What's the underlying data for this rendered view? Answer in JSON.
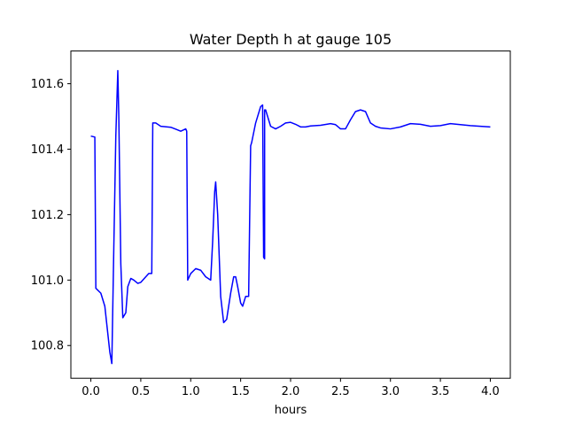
{
  "chart_data": {
    "type": "line",
    "title": "Water Depth h at gauge 105",
    "xlabel": "hours",
    "ylabel": "",
    "xlim": [
      -0.2,
      4.2
    ],
    "ylim": [
      100.7,
      101.7
    ],
    "xticks": [
      0.0,
      0.5,
      1.0,
      1.5,
      2.0,
      2.5,
      3.0,
      3.5,
      4.0
    ],
    "xtick_labels": [
      "0.0",
      "0.5",
      "1.0",
      "1.5",
      "2.0",
      "2.5",
      "3.0",
      "3.5",
      "4.0"
    ],
    "yticks": [
      100.8,
      101.0,
      101.2,
      101.4,
      101.6
    ],
    "ytick_labels": [
      "100.8",
      "101.0",
      "101.2",
      "101.4",
      "101.6"
    ],
    "grid": false,
    "legend": "none",
    "colors": {
      "line": "#0000ff",
      "axes": "#000000",
      "background": "#ffffff"
    },
    "series": [
      {
        "x": [
          0.0,
          0.04,
          0.05,
          0.1,
          0.14,
          0.19,
          0.21,
          0.23,
          0.25,
          0.27,
          0.28,
          0.3,
          0.32,
          0.35,
          0.37,
          0.4,
          0.43,
          0.47,
          0.5,
          0.55,
          0.58,
          0.61,
          0.62,
          0.65,
          0.7,
          0.8,
          0.86,
          0.9,
          0.95,
          0.96,
          0.97,
          1.0,
          1.05,
          1.1,
          1.15,
          1.2,
          1.22,
          1.24,
          1.25,
          1.27,
          1.3,
          1.33,
          1.36,
          1.4,
          1.43,
          1.45,
          1.47,
          1.5,
          1.52,
          1.55,
          1.58,
          1.6,
          1.61,
          1.65,
          1.7,
          1.72,
          1.73,
          1.74,
          1.74,
          1.75,
          1.76,
          1.78,
          1.8,
          1.85,
          1.9,
          1.95,
          2.0,
          2.05,
          2.1,
          2.15,
          2.2,
          2.3,
          2.4,
          2.45,
          2.5,
          2.55,
          2.6,
          2.65,
          2.7,
          2.75,
          2.8,
          2.85,
          2.9,
          3.0,
          3.1,
          3.2,
          3.3,
          3.4,
          3.5,
          3.6,
          3.7,
          3.8,
          3.9,
          4.0
        ],
        "y": [
          101.44,
          101.437,
          100.975,
          100.96,
          100.92,
          100.78,
          100.745,
          101.1,
          101.44,
          101.64,
          101.5,
          101.05,
          100.885,
          100.9,
          100.98,
          101.005,
          101.0,
          100.99,
          100.993,
          101.01,
          101.02,
          101.02,
          101.48,
          101.48,
          101.47,
          101.467,
          101.46,
          101.455,
          101.462,
          101.455,
          101.0,
          101.02,
          101.035,
          101.03,
          101.01,
          101.0,
          101.12,
          101.27,
          101.3,
          101.2,
          100.95,
          100.87,
          100.88,
          100.96,
          101.01,
          101.01,
          100.98,
          100.93,
          100.92,
          100.95,
          100.95,
          101.41,
          101.42,
          101.48,
          101.53,
          101.535,
          101.07,
          101.065,
          101.52,
          101.52,
          101.51,
          101.49,
          101.47,
          101.462,
          101.47,
          101.48,
          101.482,
          101.476,
          101.468,
          101.468,
          101.471,
          101.473,
          101.478,
          101.475,
          101.462,
          101.462,
          101.49,
          101.515,
          101.52,
          101.515,
          101.48,
          101.47,
          101.465,
          101.462,
          101.468,
          101.478,
          101.476,
          101.47,
          101.472,
          101.478,
          101.475,
          101.472,
          101.47,
          101.468
        ]
      }
    ]
  }
}
